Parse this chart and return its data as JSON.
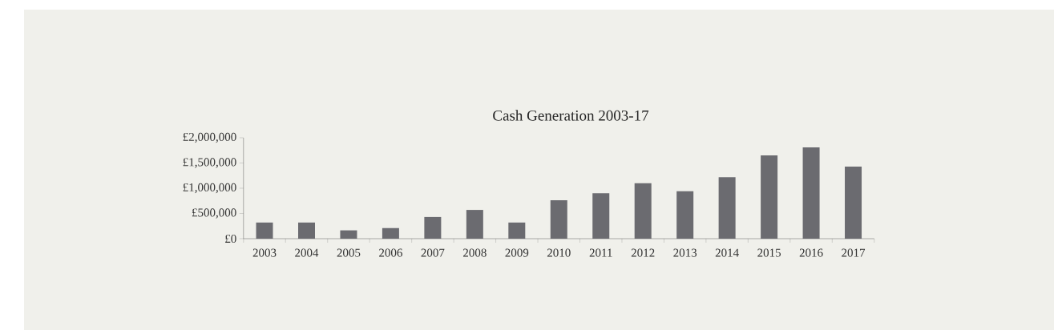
{
  "chart_data": {
    "type": "bar",
    "title": "Cash Generation 2003-17",
    "categories": [
      "2003",
      "2004",
      "2005",
      "2006",
      "2007",
      "2008",
      "2009",
      "2010",
      "2011",
      "2012",
      "2013",
      "2014",
      "2015",
      "2016",
      "2017"
    ],
    "values": [
      320000,
      320000,
      165000,
      210000,
      430000,
      570000,
      320000,
      760000,
      900000,
      1100000,
      940000,
      1220000,
      1650000,
      1810000,
      1430000
    ],
    "color": "#6b6b70",
    "ylim": [
      0,
      2000000
    ],
    "yticks": [
      {
        "value": 0,
        "label": "£0"
      },
      {
        "value": 500000,
        "label": "£500,000"
      },
      {
        "value": 1000000,
        "label": "£1,000,000"
      },
      {
        "value": 1500000,
        "label": "£1,500,000"
      },
      {
        "value": 2000000,
        "label": "£2,000,000"
      }
    ],
    "grid": false
  }
}
